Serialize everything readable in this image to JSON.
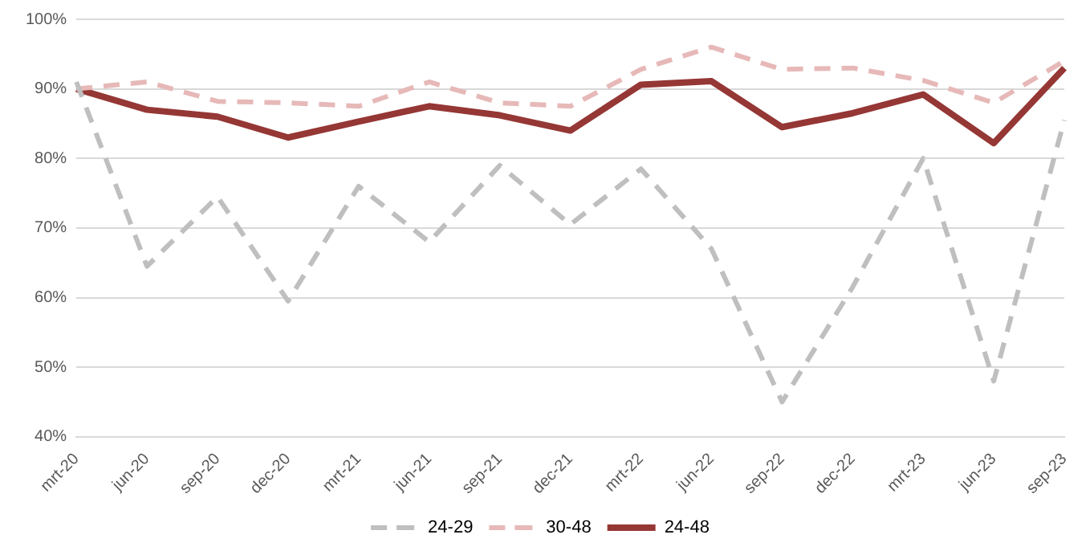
{
  "chart_data": {
    "type": "line",
    "categories": [
      "mrt-20",
      "jun-20",
      "sep-20",
      "dec-20",
      "mrt-21",
      "jun-21",
      "sep-21",
      "dec-21",
      "mrt-22",
      "jun-22",
      "sep-22",
      "dec-22",
      "mrt-23",
      "jun-23",
      "sep-23"
    ],
    "series": [
      {
        "name": "24-29",
        "color": "#bfbfbf",
        "line_style": "dashed",
        "values": [
          91,
          64.5,
          74.5,
          59.5,
          76,
          68,
          79,
          70.5,
          78.5,
          67,
          45,
          61.5,
          80,
          48,
          85.5
        ]
      },
      {
        "name": "30-48",
        "color": "#e6b9b8",
        "line_style": "dashed",
        "values": [
          90,
          91,
          88.2,
          88,
          87.5,
          91,
          88,
          87.5,
          92.8,
          96,
          92.8,
          93,
          91.2,
          88,
          94
        ]
      },
      {
        "name": "24-48",
        "color": "#953735",
        "line_style": "solid",
        "values": [
          90,
          87,
          86,
          83,
          85.3,
          87.5,
          86.2,
          84,
          90.6,
          91.1,
          84.5,
          86.5,
          89.2,
          82.2,
          93
        ]
      }
    ],
    "ylim": [
      40,
      100
    ],
    "yticks": [
      {
        "value": 40,
        "label": "40%"
      },
      {
        "value": 50,
        "label": "50%"
      },
      {
        "value": 60,
        "label": "60%"
      },
      {
        "value": 70,
        "label": "70%"
      },
      {
        "value": 80,
        "label": "80%"
      },
      {
        "value": 90,
        "label": "90%"
      },
      {
        "value": 100,
        "label": "100%"
      }
    ],
    "grid": "y",
    "legend": "bottom",
    "marker": "none"
  }
}
